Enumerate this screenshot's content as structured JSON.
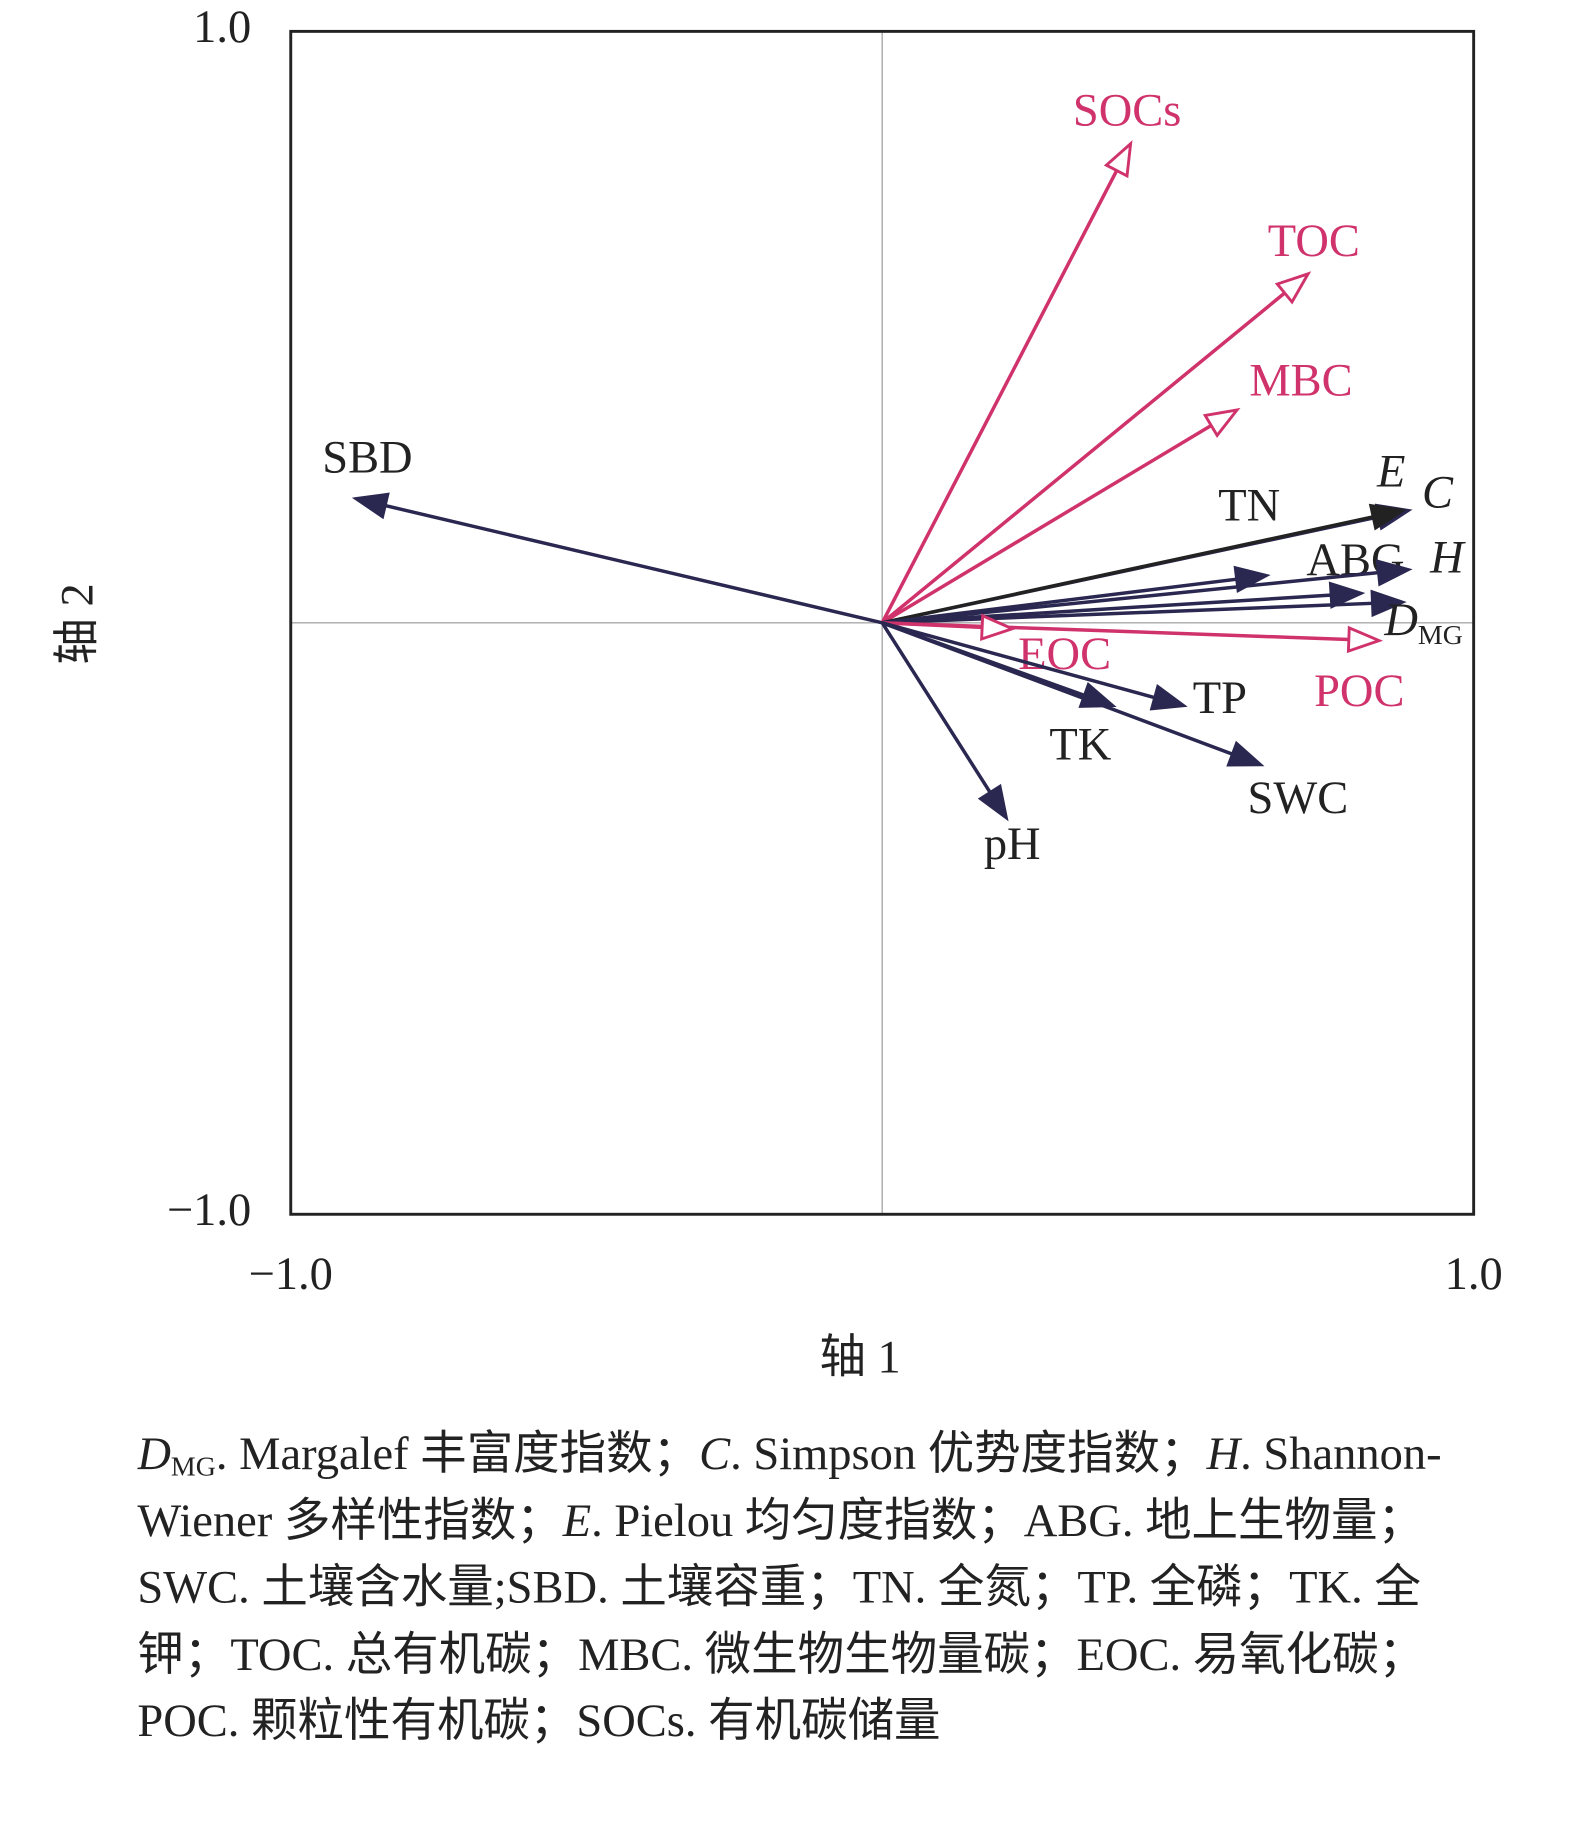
{
  "chart_data": {
    "type": "biplot",
    "xlabel": "轴 1",
    "ylabel": "轴 2",
    "xlim": [
      -1,
      1
    ],
    "ylim": [
      -1,
      1
    ],
    "xticks": [
      {
        "value": -1,
        "label": "−1.0"
      },
      {
        "value": 1,
        "label": "1.0"
      }
    ],
    "yticks": [
      {
        "value": -1,
        "label": "−1.0"
      },
      {
        "value": 1,
        "label": "1.0"
      }
    ],
    "series": [
      {
        "name": "SOCs",
        "x": 0.42,
        "y": 0.81,
        "color": "#d0336b",
        "label_color": "#d0336b",
        "head": "hollow"
      },
      {
        "name": "TOC",
        "x": 0.72,
        "y": 0.59,
        "color": "#d0336b",
        "label_color": "#d0336b",
        "head": "hollow"
      },
      {
        "name": "MBC",
        "x": 0.6,
        "y": 0.36,
        "color": "#d0336b",
        "label_color": "#d0336b",
        "head": "hollow"
      },
      {
        "name": "E",
        "italic": true,
        "x": 0.89,
        "y": 0.19,
        "color": "#2a2850",
        "label_color": "#222222",
        "head": "filled"
      },
      {
        "name": "C",
        "italic": true,
        "x": 0.88,
        "y": 0.19,
        "color": "#222222",
        "label_color": "#222222",
        "head": "filled"
      },
      {
        "name": "TN",
        "x": 0.65,
        "y": 0.08,
        "color": "#2a2850",
        "label_color": "#222222",
        "head": "filled"
      },
      {
        "name": "ABG",
        "x": 0.81,
        "y": 0.05,
        "color": "#2a2850",
        "label_color": "#222222",
        "head": "filled"
      },
      {
        "name": "H",
        "italic": true,
        "x": 0.89,
        "y": 0.09,
        "color": "#2a2850",
        "label_color": "#222222",
        "head": "filled"
      },
      {
        "name": "D",
        "subscript": "MG",
        "italic": true,
        "x": 0.88,
        "y": 0.035,
        "color": "#2a2850",
        "label_color": "#222222",
        "head": "filled"
      },
      {
        "name": "POC",
        "x": 0.84,
        "y": -0.03,
        "color": "#d0336b",
        "label_color": "#d0336b",
        "head": "hollow"
      },
      {
        "name": "EOC",
        "x": 0.22,
        "y": -0.01,
        "color": "#d0336b",
        "label_color": "#d0336b",
        "head": "hollow"
      },
      {
        "name": "TP",
        "x": 0.51,
        "y": -0.14,
        "color": "#2a2850",
        "label_color": "#222222",
        "head": "filled"
      },
      {
        "name": "TK",
        "x": 0.39,
        "y": -0.14,
        "color": "#2a2850",
        "label_color": "#222222",
        "head": "filled"
      },
      {
        "name": "SWC",
        "x": 0.64,
        "y": -0.24,
        "color": "#2a2850",
        "label_color": "#222222",
        "head": "filled"
      },
      {
        "name": "pH",
        "x": 0.21,
        "y": -0.33,
        "color": "#2a2850",
        "label_color": "#222222",
        "head": "filled"
      },
      {
        "name": "SBD",
        "x": -0.89,
        "y": 0.21,
        "color": "#2a2850",
        "label_color": "#222222",
        "head": "filled"
      }
    ],
    "caption": [
      {
        "term": "D",
        "sub": "MG",
        "italic": true,
        "text": ". Margalef 丰富度指数；"
      },
      {
        "term": "C",
        "italic": true,
        "text": ". Simpson 优势度指数；"
      },
      {
        "term": "H",
        "italic": true,
        "text": ". Shannon-Wiener 多样性指数；"
      },
      {
        "term": "E",
        "italic": true,
        "text": ". Pielou 均匀度指数；"
      },
      {
        "term": "ABG",
        "text": ". 地上生物量；"
      },
      {
        "term": "SWC",
        "text": ". 土壤含水量;"
      },
      {
        "term": "SBD",
        "text": ". 土壤容重；"
      },
      {
        "term": "TN",
        "text": ". 全氮；"
      },
      {
        "term": "TP",
        "text": ". 全磷；"
      },
      {
        "term": "TK",
        "text": ". 全钾；"
      },
      {
        "term": "TOC",
        "text": ". 总有机碳；"
      },
      {
        "term": "MBC",
        "text": ". 微生物生物量碳；"
      },
      {
        "term": "EOC",
        "text": ". 易氧化碳；"
      },
      {
        "term": "POC",
        "text": ". 颗粒性有机碳；"
      },
      {
        "term": "SOCs",
        "text": ". 有机碳储量"
      }
    ]
  }
}
